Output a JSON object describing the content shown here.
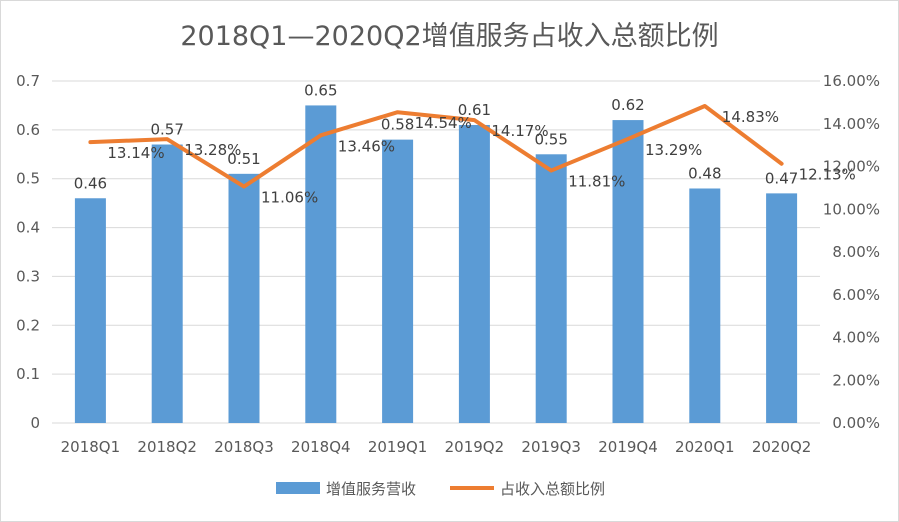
{
  "chart_data": {
    "type": "bar",
    "title": "2018Q1—2020Q2增值服务占收入总额比例",
    "categories": [
      "2018Q1",
      "2018Q2",
      "2018Q3",
      "2018Q4",
      "2019Q1",
      "2019Q2",
      "2019Q3",
      "2019Q4",
      "2020Q1",
      "2020Q2"
    ],
    "series": [
      {
        "name": "增值服务营收",
        "kind": "bar",
        "axis": "left",
        "color": "#5b9bd5",
        "values": [
          0.46,
          0.57,
          0.51,
          0.65,
          0.58,
          0.61,
          0.55,
          0.62,
          0.48,
          0.47
        ],
        "labels": [
          "0.46",
          "0.57",
          "0.51",
          "0.65",
          "0.58",
          "0.61",
          "0.55",
          "0.62",
          "0.48",
          "0.47"
        ]
      },
      {
        "name": "占收入总额比例",
        "kind": "line",
        "axis": "right",
        "color": "#ed7d31",
        "values": [
          13.14,
          13.28,
          11.06,
          13.46,
          14.54,
          14.17,
          11.81,
          13.29,
          14.83,
          12.13
        ],
        "labels": [
          "13.14%",
          "13.28%",
          "11.06%",
          "13.46%",
          "14.54%",
          "14.17%",
          "11.81%",
          "13.29%",
          "14.83%",
          "12.13%"
        ]
      }
    ],
    "ylim_left": [
      0,
      0.7
    ],
    "yticks_left": [
      "0",
      "0.1",
      "0.2",
      "0.3",
      "0.4",
      "0.5",
      "0.6",
      "0.7"
    ],
    "ylim_right": [
      0,
      16
    ],
    "yticks_right": [
      "0.00%",
      "2.00%",
      "4.00%",
      "6.00%",
      "8.00%",
      "10.00%",
      "12.00%",
      "14.00%",
      "16.00%"
    ],
    "grid": true,
    "legend": "bottom"
  }
}
